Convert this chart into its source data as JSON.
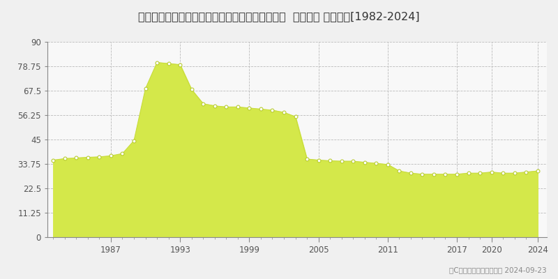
{
  "title": "兵庫県神戸市垂水区つつじが丘２丁目１１番１２  公示地価 地価推移[1982-2024]",
  "years": [
    1982,
    1983,
    1984,
    1985,
    1986,
    1987,
    1988,
    1989,
    1990,
    1991,
    1992,
    1993,
    1994,
    1995,
    1996,
    1997,
    1998,
    1999,
    2000,
    2001,
    2002,
    2003,
    2004,
    2005,
    2006,
    2007,
    2008,
    2009,
    2010,
    2011,
    2012,
    2013,
    2014,
    2015,
    2016,
    2017,
    2018,
    2019,
    2020,
    2021,
    2022,
    2023,
    2024
  ],
  "values": [
    35.5,
    36.2,
    36.5,
    36.8,
    37.0,
    37.5,
    38.5,
    44.5,
    68.5,
    80.5,
    80.0,
    79.5,
    68.0,
    61.5,
    60.5,
    60.0,
    60.0,
    59.5,
    59.0,
    58.5,
    57.5,
    55.5,
    36.0,
    35.5,
    35.2,
    35.0,
    35.0,
    34.5,
    34.0,
    33.5,
    30.5,
    29.5,
    29.0,
    29.0,
    29.0,
    29.0,
    29.5,
    29.5,
    30.0,
    29.5,
    29.5,
    30.0,
    30.5
  ],
  "fill_color": "#d4e84a",
  "line_color": "#c8dc3c",
  "marker_facecolor": "#ffffff",
  "marker_edgecolor": "#b8cc30",
  "background_color": "#f0f0f0",
  "plot_bg_color": "#f8f8f8",
  "grid_color": "#bbbbbb",
  "yticks": [
    0,
    11.25,
    22.5,
    33.75,
    45,
    56.25,
    67.5,
    78.75,
    90
  ],
  "ytick_labels": [
    "0",
    "11.25",
    "22.5",
    "33.75",
    "45",
    "56.25",
    "67.5",
    "78.75",
    "90"
  ],
  "xtick_years": [
    1987,
    1993,
    1999,
    2005,
    2011,
    2017,
    2020,
    2024
  ],
  "ylim": [
    0,
    90
  ],
  "xlim": [
    1981.5,
    2024.8
  ],
  "copyright_text": "（C）土地価格ドットコム 2024-09-23",
  "title_fontsize": 11.5,
  "tick_fontsize": 8.5,
  "legend_fontsize": 9
}
